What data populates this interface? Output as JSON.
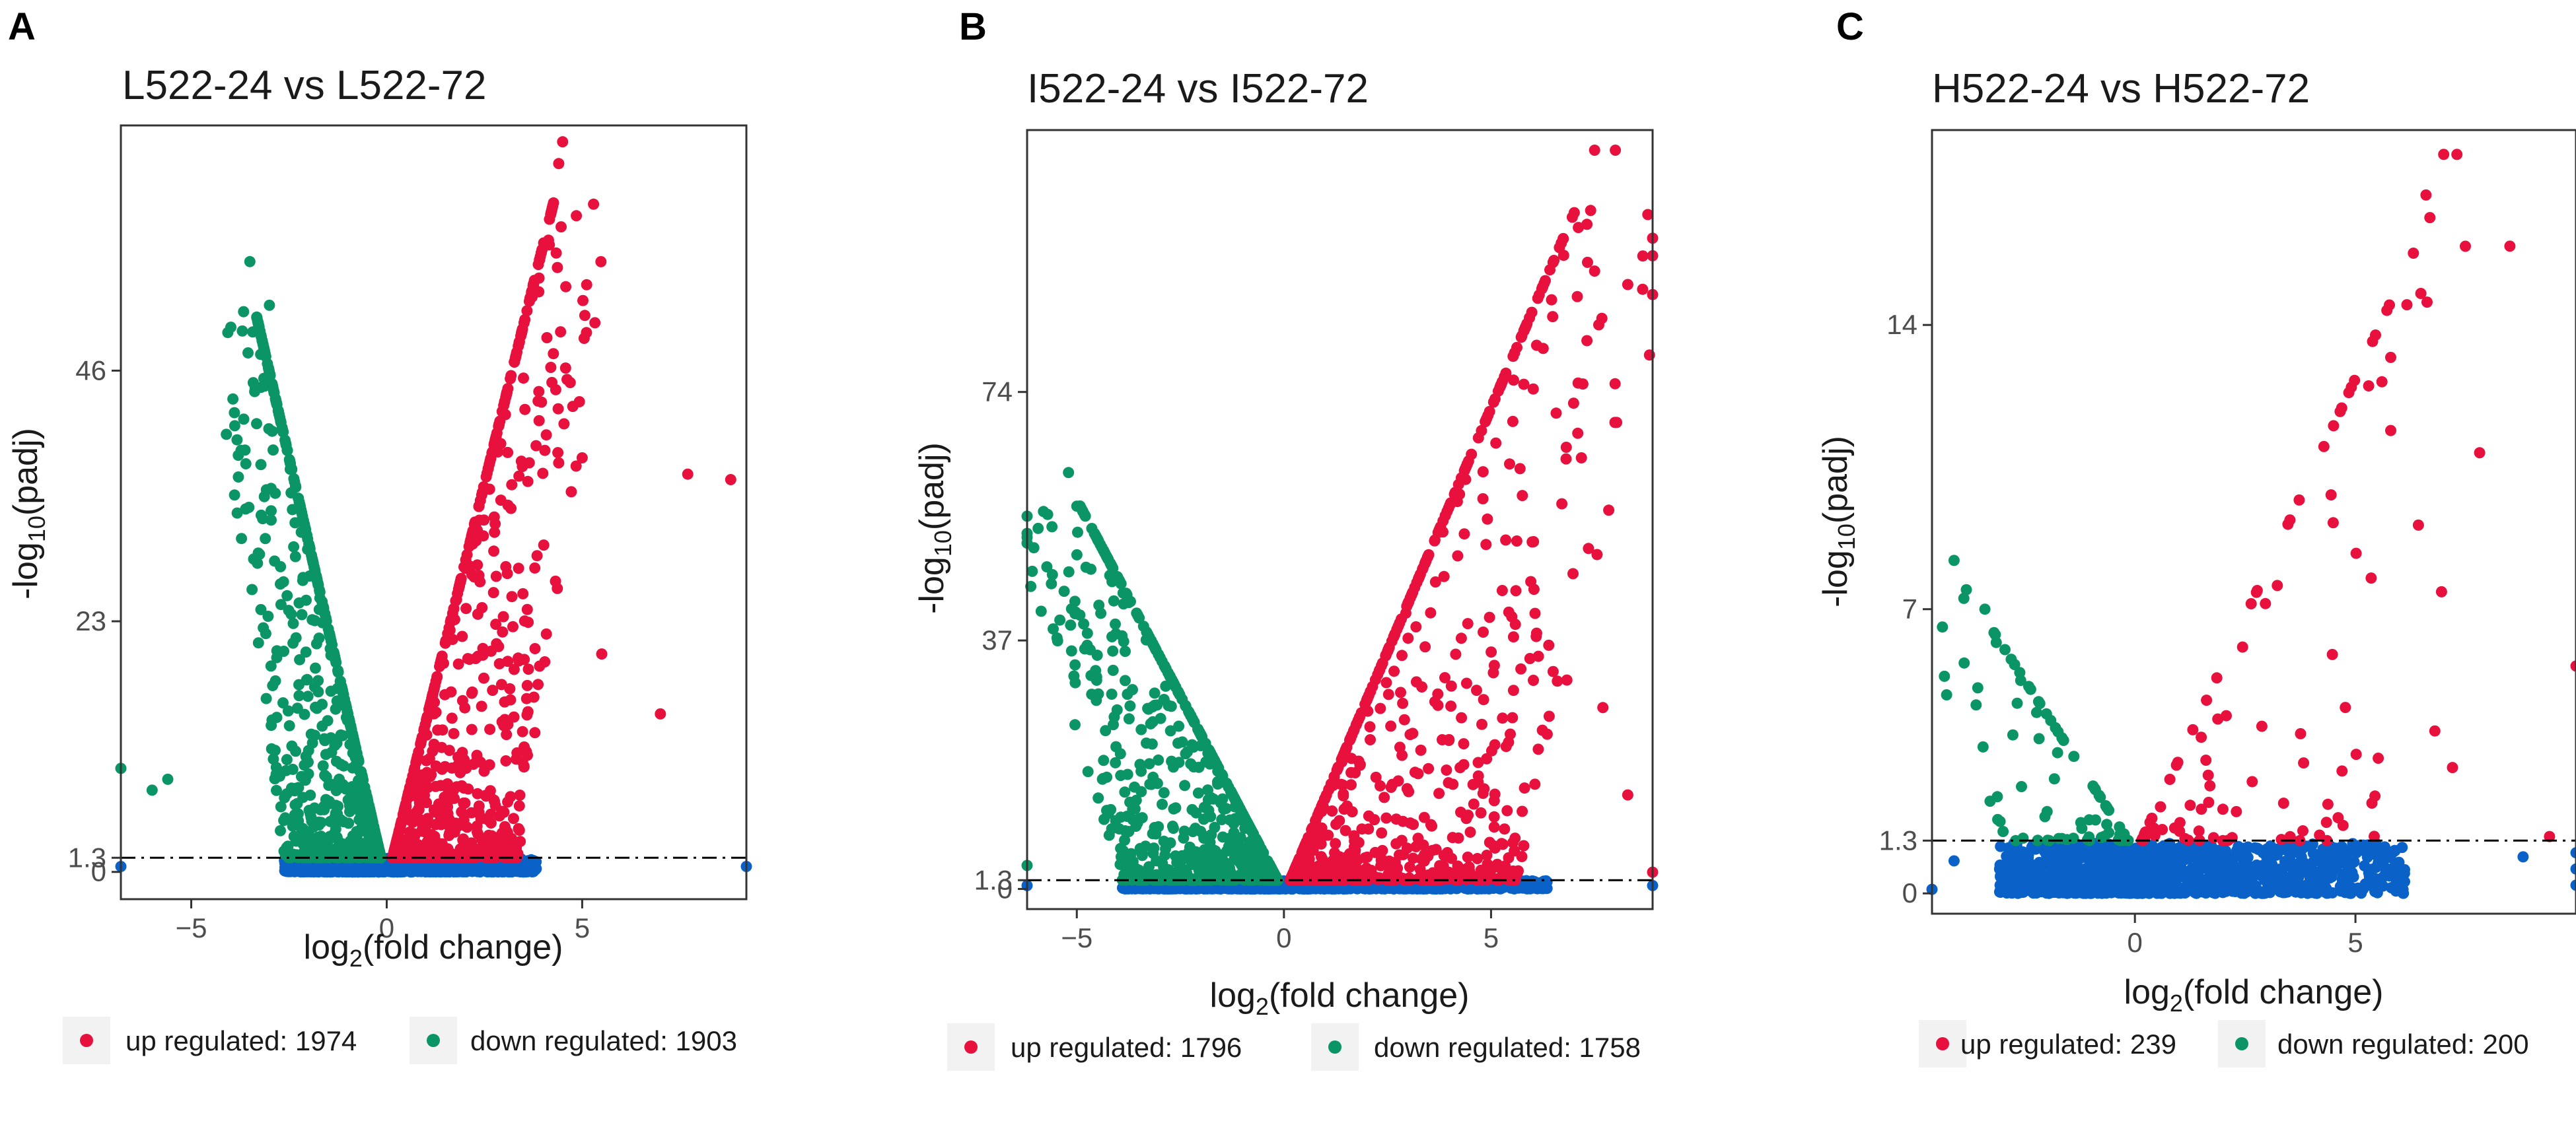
{
  "colors": {
    "up": "#e8103c",
    "down": "#0b9566",
    "ns": "#0a62c9"
  },
  "chart_data": [
    {
      "type": "scatter",
      "panel_label": "A",
      "title": "L522-24 vs L522-72",
      "xlabel": {
        "prefix": "log",
        "sub": "2",
        "suffix": "(fold change)"
      },
      "ylabel": {
        "prefix": "-log",
        "sub": "10",
        "suffix": "(padj)"
      },
      "xlim": [
        -6.8,
        9.2
      ],
      "ylim": [
        -2.5,
        68.5
      ],
      "xticks": [
        -5,
        0,
        5
      ],
      "xtick_labels": [
        "−5",
        "0",
        "5"
      ],
      "yticks": [
        0,
        1.3,
        23,
        46
      ],
      "ytick_labels": [
        "0",
        "1.3",
        "23",
        "46"
      ],
      "threshold": 1.3,
      "up_count": 1974,
      "down_count": 1903,
      "up_peak": {
        "xpeak": 4.5,
        "ypeak": 67
      },
      "down_peak": {
        "xpeak": -3.5,
        "ypeak": 56
      },
      "notable_points": [
        {
          "x": 4.5,
          "y": 67,
          "group": "up"
        },
        {
          "x": 4.4,
          "y": 65,
          "group": "up"
        },
        {
          "x": 7.7,
          "y": 36.5,
          "group": "up"
        },
        {
          "x": 8.8,
          "y": 36,
          "group": "up"
        },
        {
          "x": 7.0,
          "y": 14.5,
          "group": "up"
        },
        {
          "x": 5.0,
          "y": 38,
          "group": "up"
        },
        {
          "x": 5.5,
          "y": 20,
          "group": "up"
        },
        {
          "x": -3.5,
          "y": 56,
          "group": "down"
        },
        {
          "x": -3.0,
          "y": 52,
          "group": "down"
        },
        {
          "x": -6.8,
          "y": 9.5,
          "group": "down"
        },
        {
          "x": -6.0,
          "y": 7.5,
          "group": "down"
        },
        {
          "x": -5.6,
          "y": 8.5,
          "group": "down"
        },
        {
          "x": -6.8,
          "y": 0.5,
          "group": "ns"
        },
        {
          "x": 9.2,
          "y": 0.5,
          "group": "ns"
        }
      ],
      "legend": {
        "up_label": "up regulated: 1974",
        "down_label": "down regulated: 1903"
      }
    },
    {
      "type": "scatter",
      "panel_label": "B",
      "title": "I522-24 vs I522-72",
      "xlabel": {
        "prefix": "log",
        "sub": "2",
        "suffix": "(fold change)"
      },
      "ylabel": {
        "prefix": "-log",
        "sub": "10",
        "suffix": "(padj)"
      },
      "xlim": [
        -6.2,
        8.9
      ],
      "ylim": [
        -3.0,
        113.0
      ],
      "xticks": [
        -5,
        0,
        5
      ],
      "xtick_labels": [
        "−5",
        "0",
        "5"
      ],
      "yticks": [
        0,
        1.3,
        37,
        74
      ],
      "ytick_labels": [
        "0",
        "1.3",
        "37",
        "74"
      ],
      "threshold": 1.3,
      "up_count": 1796,
      "down_count": 1758,
      "up_peak": {
        "xpeak": 7.5,
        "ypeak": 110
      },
      "down_peak": {
        "xpeak": -5.2,
        "ypeak": 62
      },
      "notable_points": [
        {
          "x": 7.5,
          "y": 110,
          "group": "up"
        },
        {
          "x": 8.0,
          "y": 110,
          "group": "up"
        },
        {
          "x": 8.3,
          "y": 90,
          "group": "up"
        },
        {
          "x": 7.6,
          "y": 84,
          "group": "up"
        },
        {
          "x": 7.5,
          "y": 92,
          "group": "up"
        },
        {
          "x": 8.3,
          "y": 14,
          "group": "up"
        },
        {
          "x": 7.7,
          "y": 27,
          "group": "up"
        },
        {
          "x": -5.2,
          "y": 62,
          "group": "down"
        },
        {
          "x": -5.0,
          "y": 57,
          "group": "down"
        },
        {
          "x": -6.2,
          "y": 3.5,
          "group": "down"
        },
        {
          "x": -6.2,
          "y": 0.5,
          "group": "ns"
        },
        {
          "x": 8.9,
          "y": 0.5,
          "group": "ns"
        },
        {
          "x": 8.9,
          "y": 2.5,
          "group": "up"
        }
      ],
      "legend": {
        "up_label": "up regulated: 1796",
        "down_label": "down regulated: 1758"
      }
    },
    {
      "type": "scatter",
      "panel_label": "C",
      "title": "H522-24 vs H522-72",
      "xlabel": {
        "prefix": "log",
        "sub": "2",
        "suffix": "(fold change)"
      },
      "ylabel": {
        "prefix": "-log",
        "sub": "10",
        "suffix": "(padj)"
      },
      "xlim": [
        -4.6,
        10.0
      ],
      "ylim": [
        -0.5,
        18.8
      ],
      "xticks": [
        0,
        5
      ],
      "xtick_labels": [
        "0",
        "5"
      ],
      "yticks": [
        0,
        1.3,
        7,
        14
      ],
      "ytick_labels": [
        "0",
        "1.3",
        "7",
        "14"
      ],
      "threshold": 1.3,
      "up_count": 239,
      "down_count": 200,
      "up_peak": {
        "xpeak": 7.2,
        "ypeak": 18.2
      },
      "down_peak": {
        "xpeak": -4.1,
        "ypeak": 8.2
      },
      "notable_points": [
        {
          "x": 7.0,
          "y": 18.2,
          "group": "up"
        },
        {
          "x": 7.3,
          "y": 18.2,
          "group": "up"
        },
        {
          "x": 6.6,
          "y": 17.2,
          "group": "up"
        },
        {
          "x": 5.8,
          "y": 13.2,
          "group": "up"
        },
        {
          "x": 5.6,
          "y": 12.6,
          "group": "up"
        },
        {
          "x": 5.8,
          "y": 11.4,
          "group": "up"
        },
        {
          "x": 5.3,
          "y": 12.5,
          "group": "up"
        },
        {
          "x": 7.2,
          "y": 3.1,
          "group": "up"
        },
        {
          "x": 6.8,
          "y": 4.0,
          "group": "up"
        },
        {
          "x": 10.0,
          "y": 5.6,
          "group": "up"
        },
        {
          "x": 9.4,
          "y": 1.4,
          "group": "up"
        },
        {
          "x": -4.1,
          "y": 8.2,
          "group": "down"
        },
        {
          "x": -3.4,
          "y": 7.0,
          "group": "down"
        },
        {
          "x": -4.1,
          "y": 0.8,
          "group": "ns"
        },
        {
          "x": -4.6,
          "y": 0.1,
          "group": "ns"
        },
        {
          "x": 10.0,
          "y": 0.2,
          "group": "ns"
        },
        {
          "x": 10.0,
          "y": 0.6,
          "group": "ns"
        },
        {
          "x": 10.0,
          "y": 1.0,
          "group": "ns"
        },
        {
          "x": 8.8,
          "y": 0.9,
          "group": "ns"
        }
      ],
      "legend": {
        "up_label": "up regulated: 239",
        "down_label": "down regulated: 200"
      }
    }
  ]
}
